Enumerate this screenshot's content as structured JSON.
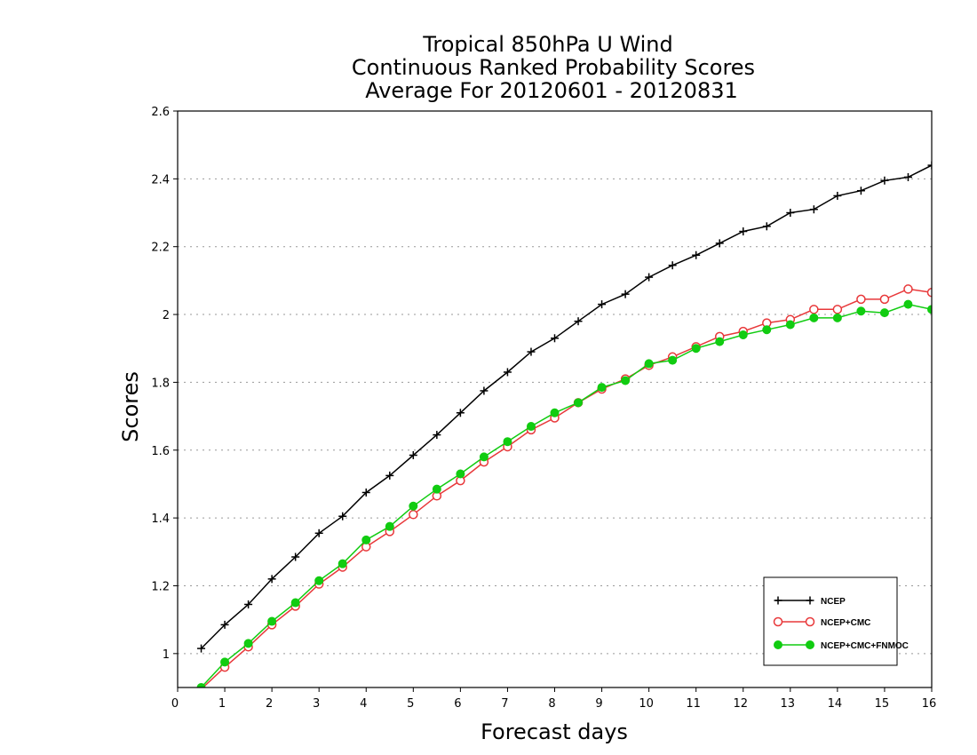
{
  "chart_data": {
    "type": "line",
    "title": [
      "Tropical 850hPa U Wind",
      "Continuous Ranked Probability Scores",
      "Average For 20120601 - 20120831"
    ],
    "xlabel": "Forecast days",
    "ylabel": "Scores",
    "xlim": [
      0,
      16
    ],
    "ylim": [
      0.9,
      2.6
    ],
    "x_ticks": [
      0,
      1,
      2,
      3,
      4,
      5,
      6,
      7,
      8,
      9,
      10,
      11,
      12,
      13,
      14,
      15,
      16
    ],
    "y_ticks": [
      1,
      1.2,
      1.4,
      1.6,
      1.8,
      2,
      2.2,
      2.4,
      2.6
    ],
    "y_tick_labels": [
      "1",
      "1.2",
      "1.4",
      "1.6",
      "1.8",
      "2",
      "2.2",
      "2.4",
      "2.6"
    ],
    "grid": "dotted horizontal",
    "legend_position": "bottom-right",
    "x": [
      0.5,
      1,
      1.5,
      2,
      2.5,
      3,
      3.5,
      4,
      4.5,
      5,
      5.5,
      6,
      6.5,
      7,
      7.5,
      8,
      8.5,
      9,
      9.5,
      10,
      10.5,
      11,
      11.5,
      12,
      12.5,
      13,
      13.5,
      14,
      14.5,
      15,
      15.5,
      16
    ],
    "series": [
      {
        "name": "NCEP",
        "color": "#000000",
        "marker": "plus",
        "values": [
          1.015,
          1.085,
          1.145,
          1.22,
          1.285,
          1.355,
          1.405,
          1.475,
          1.525,
          1.585,
          1.645,
          1.71,
          1.775,
          1.83,
          1.89,
          1.93,
          1.98,
          2.03,
          2.06,
          2.11,
          2.145,
          2.175,
          2.21,
          2.245,
          2.26,
          2.3,
          2.31,
          2.35,
          2.365,
          2.395,
          2.405,
          2.44
        ]
      },
      {
        "name": "NCEP+CMC",
        "color": "#e8383a",
        "marker": "open-circle",
        "values": [
          0.895,
          0.96,
          1.02,
          1.085,
          1.14,
          1.205,
          1.255,
          1.315,
          1.36,
          1.41,
          1.465,
          1.51,
          1.565,
          1.61,
          1.66,
          1.695,
          1.74,
          1.78,
          1.81,
          1.85,
          1.875,
          1.905,
          1.935,
          1.95,
          1.975,
          1.985,
          2.015,
          2.015,
          2.045,
          2.045,
          2.075,
          2.065
        ]
      },
      {
        "name": "NCEP+CMC+FNMOC",
        "color": "#11cc11",
        "marker": "filled-circle",
        "values": [
          0.9,
          0.975,
          1.03,
          1.095,
          1.15,
          1.215,
          1.265,
          1.335,
          1.375,
          1.435,
          1.485,
          1.53,
          1.58,
          1.625,
          1.67,
          1.71,
          1.74,
          1.785,
          1.805,
          1.855,
          1.865,
          1.9,
          1.92,
          1.94,
          1.955,
          1.97,
          1.99,
          1.99,
          2.01,
          2.005,
          2.03,
          2.015
        ]
      }
    ]
  }
}
